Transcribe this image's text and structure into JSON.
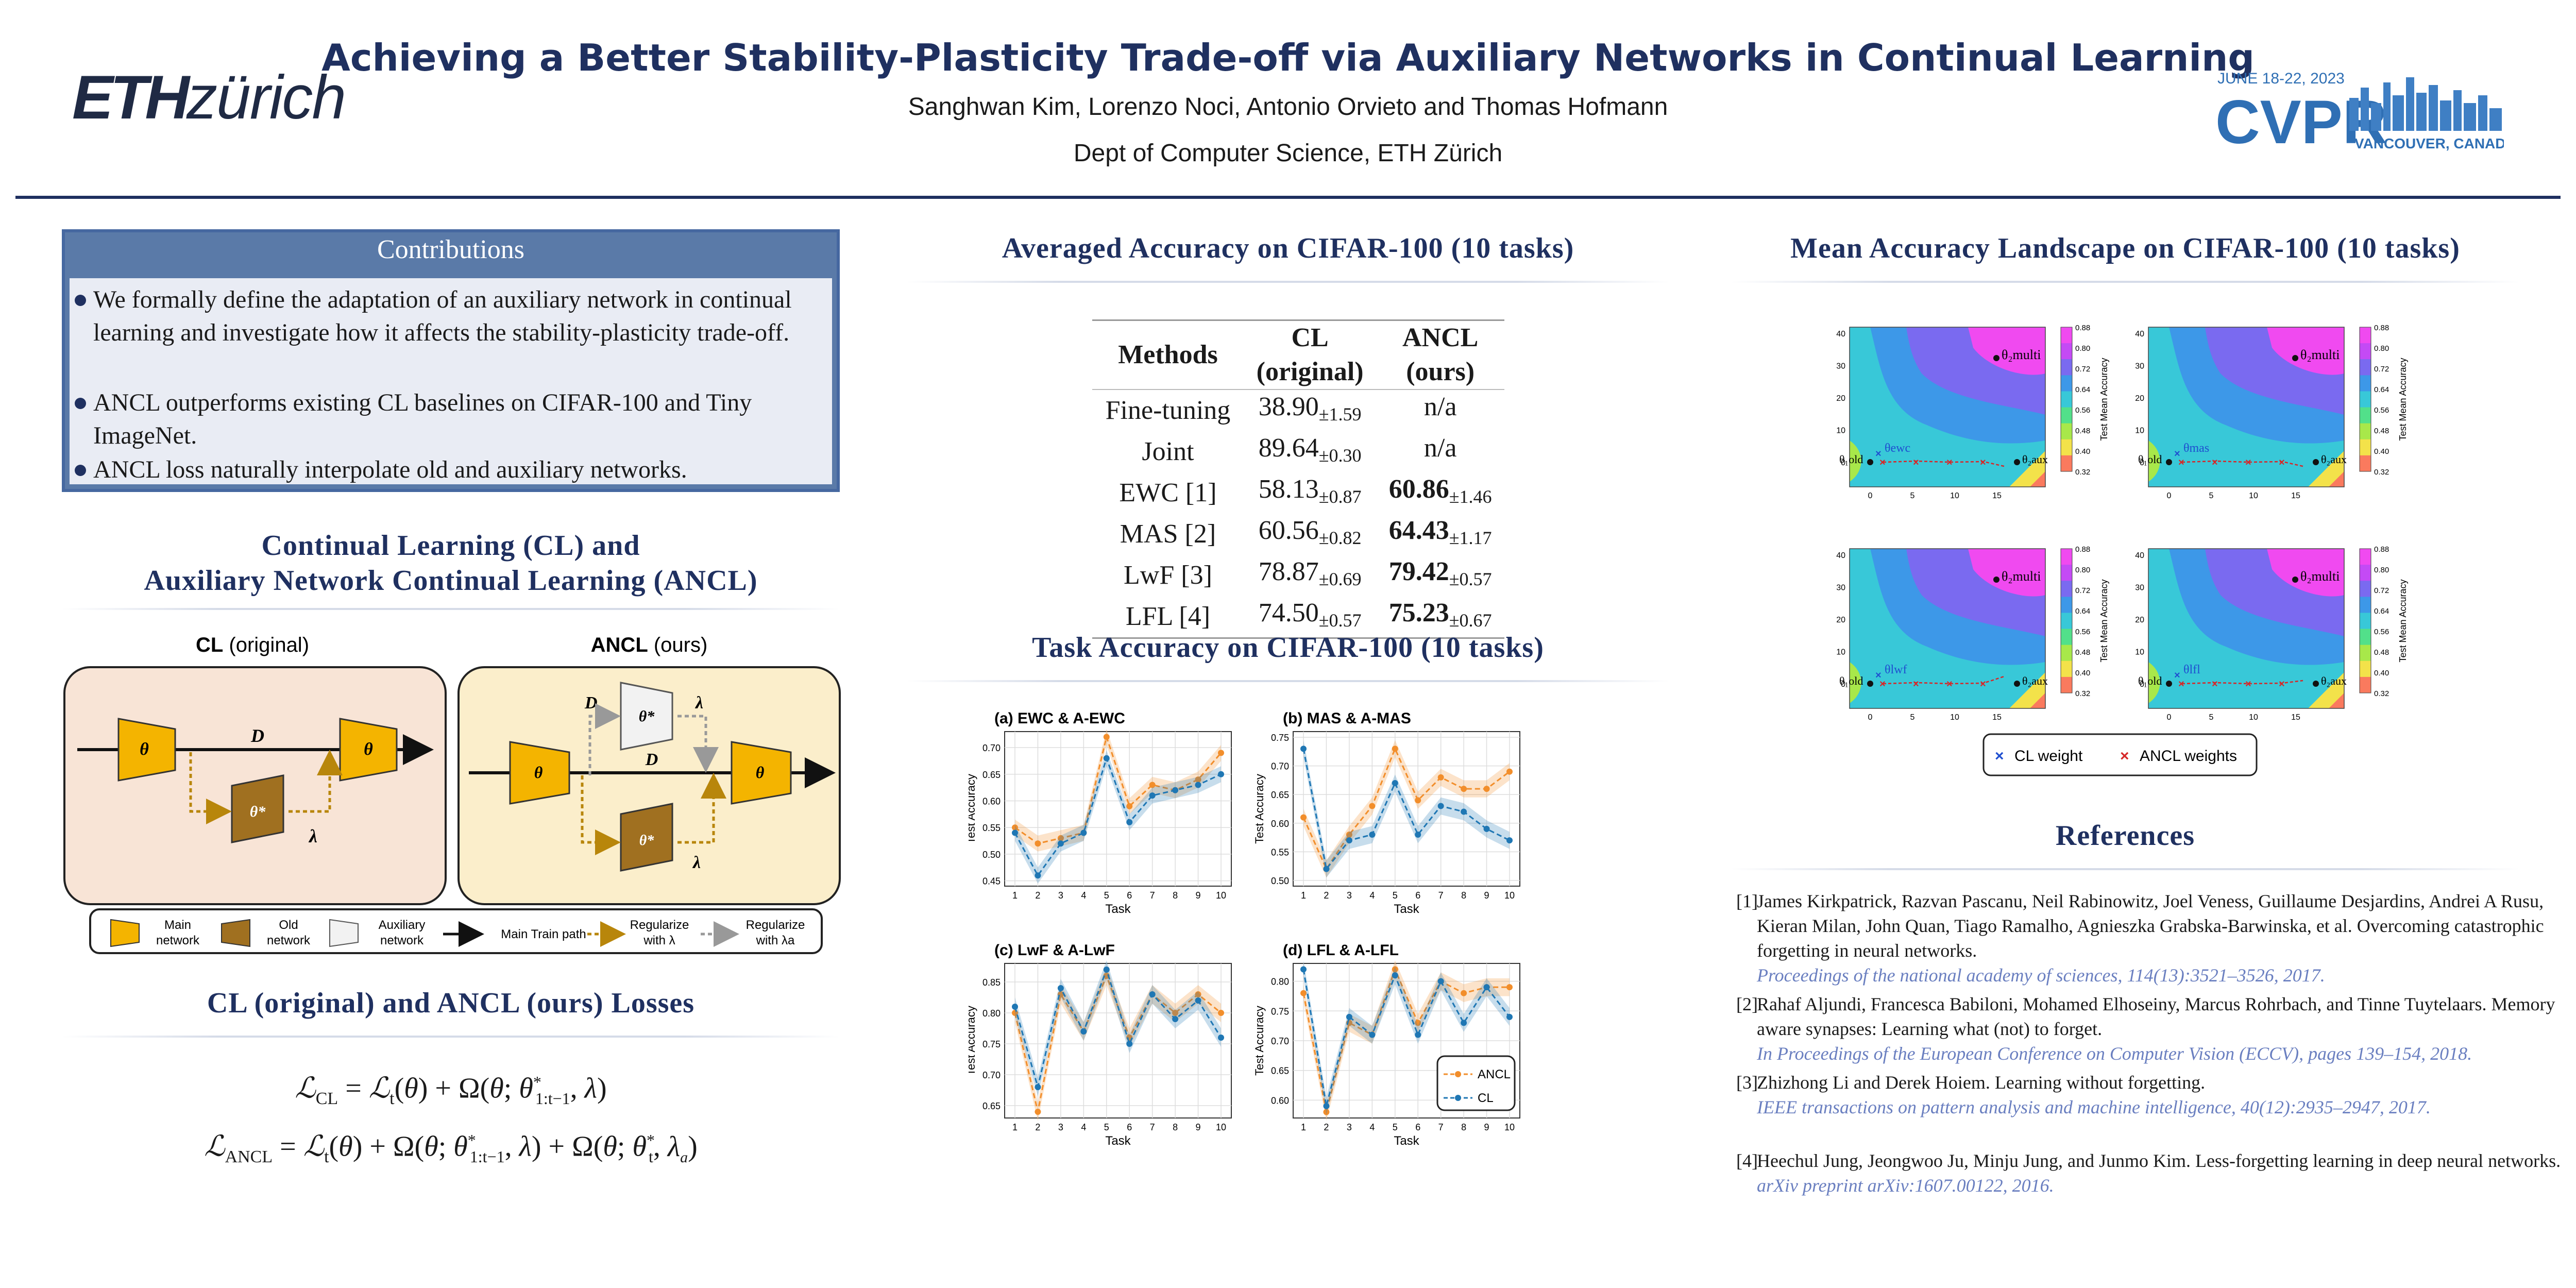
{
  "header": {
    "title": "Achieving a Better Stability-Plasticity Trade-off via Auxiliary Networks in Continual Learning",
    "authors": "Sanghwan Kim, Lorenzo Noci, Antonio Orvieto and Thomas Hofmann",
    "affiliation": "Dept of Computer Science, ETH Zürich",
    "logo_left_bold": "ETH",
    "logo_left_rest": "zürich",
    "cvpr_date": "JUNE 18-22, 2023",
    "cvpr_name": "CVPR",
    "cvpr_place": "VANCOUVER, CANADA"
  },
  "contributions": {
    "title": "Contributions",
    "items": [
      "We formally define the adaptation of an auxiliary network in continual learning and investigate how it affects the stability-plasticity trade-off.",
      "ANCL outperforms existing CL baselines on CIFAR-100 and Tiny ImageNet.",
      "ANCL loss naturally interpolate old and auxiliary networks."
    ]
  },
  "cl_section": {
    "title_line1": "Continual Learning (CL) and",
    "title_line2": "Auxiliary Network Continual Learning (ANCL)",
    "cl_label_bold": "CL",
    "cl_label_rest": " (original)",
    "ancl_label_bold": "ANCL",
    "ancl_label_rest": " (ours)",
    "legend": {
      "main": [
        "Main",
        "network"
      ],
      "old": [
        "Old",
        "network"
      ],
      "aux": [
        "Auxiliary",
        "network"
      ],
      "main_path": "Main Train path",
      "reg_lambda": [
        "Regularize",
        "with λ"
      ],
      "reg_lambda_a": [
        "Regularize",
        "with λa"
      ]
    }
  },
  "losses": {
    "title": "CL (original) and ANCL (ours) Losses",
    "cl_lhs": "ℒ",
    "ancl_lhs": "ℒ"
  },
  "table_section": {
    "title": "Averaged Accuracy on CIFAR-100 (10 tasks)",
    "headers": [
      "Methods",
      "CL",
      "(original)",
      "ANCL",
      "(ours)"
    ],
    "rows": [
      {
        "method": "Fine-tuning",
        "cl": "38.90",
        "cl_std": "±1.59",
        "ancl": "n/a",
        "ancl_std": ""
      },
      {
        "method": "Joint",
        "cl": "89.64",
        "cl_std": "±0.30",
        "ancl": "n/a",
        "ancl_std": ""
      },
      {
        "method": "EWC [1]",
        "cl": "58.13",
        "cl_std": "±0.87",
        "ancl": "60.86",
        "ancl_std": "±1.46"
      },
      {
        "method": "MAS [2]",
        "cl": "60.56",
        "cl_std": "±0.82",
        "ancl": "64.43",
        "ancl_std": "±1.17"
      },
      {
        "method": "LwF [3]",
        "cl": "78.87",
        "cl_std": "±0.69",
        "ancl": "79.42",
        "ancl_std": "±0.57"
      },
      {
        "method": "LFL [4]",
        "cl": "74.50",
        "cl_std": "±0.57",
        "ancl": "75.23",
        "ancl_std": "±0.67"
      }
    ]
  },
  "task_section": {
    "title": "Task Accuracy on CIFAR-100 (10 tasks)",
    "legend": [
      "ANCL",
      "CL"
    ]
  },
  "chart_data": [
    {
      "type": "line",
      "title": "(a) EWC & A-EWC",
      "xlabel": "Task",
      "ylabel": "Test Accuracy",
      "x": [
        1,
        2,
        3,
        4,
        5,
        6,
        7,
        8,
        9,
        10
      ],
      "ylim": [
        0.44,
        0.73
      ],
      "yticks": [
        "0.45",
        "0.50",
        "0.55",
        "0.60",
        "0.65",
        "0.70"
      ],
      "series": [
        {
          "name": "ANCL",
          "values": [
            0.55,
            0.52,
            0.53,
            0.54,
            0.72,
            0.59,
            0.63,
            0.62,
            0.64,
            0.69
          ]
        },
        {
          "name": "CL",
          "values": [
            0.54,
            0.46,
            0.52,
            0.54,
            0.68,
            0.56,
            0.61,
            0.62,
            0.63,
            0.65
          ]
        }
      ]
    },
    {
      "type": "line",
      "title": "(b) MAS & A-MAS",
      "xlabel": "Task",
      "ylabel": "Test Accuracy",
      "x": [
        1,
        2,
        3,
        4,
        5,
        6,
        7,
        8,
        9,
        10
      ],
      "ylim": [
        0.49,
        0.76
      ],
      "yticks": [
        "0.50",
        "0.55",
        "0.60",
        "0.65",
        "0.70",
        "0.75"
      ],
      "series": [
        {
          "name": "ANCL",
          "values": [
            0.61,
            0.52,
            0.58,
            0.63,
            0.73,
            0.64,
            0.68,
            0.66,
            0.66,
            0.69
          ]
        },
        {
          "name": "CL",
          "values": [
            0.73,
            0.52,
            0.57,
            0.58,
            0.67,
            0.58,
            0.63,
            0.62,
            0.59,
            0.57
          ]
        }
      ]
    },
    {
      "type": "line",
      "title": "(c) LwF & A-LwF",
      "xlabel": "Task",
      "ylabel": "Test Accuracy",
      "x": [
        1,
        2,
        3,
        4,
        5,
        6,
        7,
        8,
        9,
        10
      ],
      "ylim": [
        0.63,
        0.88
      ],
      "yticks": [
        "0.65",
        "0.70",
        "0.75",
        "0.80",
        "0.85"
      ],
      "series": [
        {
          "name": "ANCL",
          "values": [
            0.8,
            0.64,
            0.83,
            0.77,
            0.86,
            0.76,
            0.83,
            0.8,
            0.83,
            0.8
          ]
        },
        {
          "name": "CL",
          "values": [
            0.81,
            0.68,
            0.84,
            0.77,
            0.87,
            0.75,
            0.83,
            0.79,
            0.82,
            0.76
          ]
        }
      ]
    },
    {
      "type": "line",
      "title": "(d) LFL & A-LFL",
      "xlabel": "Task",
      "ylabel": "Test Accuracy",
      "x": [
        1,
        2,
        3,
        4,
        5,
        6,
        7,
        8,
        9,
        10
      ],
      "ylim": [
        0.57,
        0.83
      ],
      "yticks": [
        "0.60",
        "0.65",
        "0.70",
        "0.75",
        "0.80"
      ],
      "series": [
        {
          "name": "ANCL",
          "values": [
            0.78,
            0.58,
            0.73,
            0.71,
            0.82,
            0.73,
            0.8,
            0.78,
            0.79,
            0.79
          ]
        },
        {
          "name": "CL",
          "values": [
            0.82,
            0.59,
            0.74,
            0.71,
            0.81,
            0.71,
            0.8,
            0.73,
            0.79,
            0.74
          ]
        }
      ]
    }
  ],
  "landscape": {
    "title": "Mean Accuracy Landscape on CIFAR-100 (10 tasks)",
    "colorbar_label": "Test Mean Accuracy",
    "colorbar_ticks": [
      "0.88",
      "0.80",
      "0.72",
      "0.64",
      "0.56",
      "0.48",
      "0.40",
      "0.32"
    ],
    "xticks": [
      "0",
      "5",
      "10",
      "15"
    ],
    "yticks": [
      "40",
      "30",
      "20",
      "10",
      "0"
    ],
    "labels": {
      "multi": "θ₂multi",
      "old": "θ₁old",
      "aux": "θ₂aux"
    },
    "panel_tags": [
      "θewc",
      "θmas",
      "θlwf",
      "θlfl"
    ],
    "legend": [
      "CL weight",
      "ANCL weights"
    ]
  },
  "references": {
    "title": "References",
    "items": [
      {
        "num": "[1]",
        "text": "James Kirkpatrick, Razvan Pascanu, Neil Rabinowitz, Joel Veness, Guillaume Desjardins, Andrei A Rusu, Kieran Milan, John Quan, Tiago Ramalho, Agnieszka Grabska-Barwinska, et al. Overcoming catastrophic forgetting in neural networks.",
        "link": "Proceedings of the national academy of sciences, 114(13):3521–3526, 2017."
      },
      {
        "num": "[2]",
        "text": "Rahaf Aljundi, Francesca Babiloni, Mohamed Elhoseiny, Marcus Rohrbach, and Tinne Tuytelaars. Memory aware synapses: Learning what (not) to forget.",
        "link": "In Proceedings of the European Conference on Computer Vision (ECCV), pages 139–154, 2018."
      },
      {
        "num": "[3]",
        "text": "Zhizhong Li and Derek Hoiem. Learning without forgetting.",
        "link": "IEEE transactions on pattern analysis and machine intelligence, 40(12):2935–2947, 2017."
      },
      {
        "num": "[4]",
        "text": "Heechul Jung, Jeongwoo Ju, Minju Jung, and Junmo Kim. Less-forgetting learning in deep neural networks.",
        "link": "arXiv preprint arXiv:1607.00122, 2016."
      }
    ]
  }
}
